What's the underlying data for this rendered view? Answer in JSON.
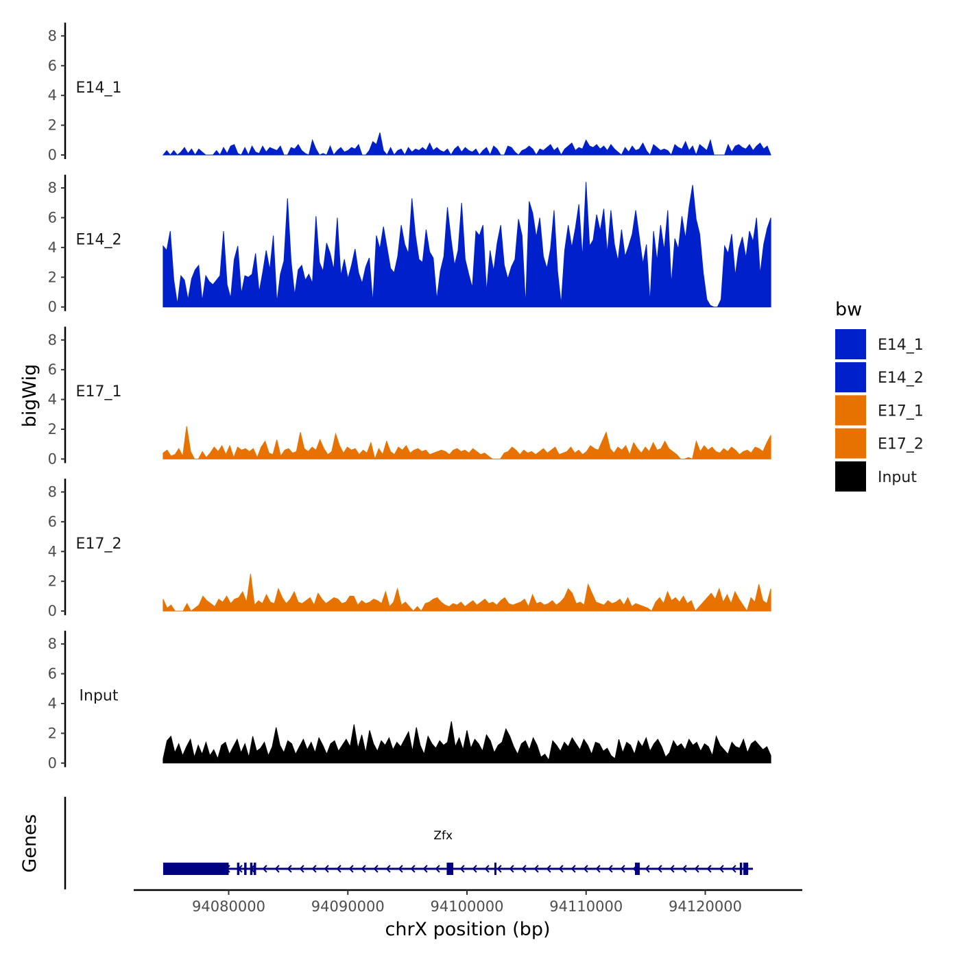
{
  "chart_data": {
    "type": "area",
    "title": "",
    "xlabel": "chrX position (bp)",
    "ylabel": "bigWig",
    "genes_label": "Genes",
    "xlim": [
      94072000,
      94128000
    ],
    "ylim": [
      0,
      8.8
    ],
    "x_ticks": [
      94080000,
      94090000,
      94100000,
      94110000,
      94120000
    ],
    "x_tick_labels": [
      "94080000",
      "94090000",
      "94100000",
      "94110000",
      "94120000"
    ],
    "y_ticks": [
      0,
      2,
      4,
      6,
      8
    ],
    "y_tick_labels": [
      "0",
      "2",
      "4",
      "6",
      "8"
    ],
    "region_start": 94074500,
    "region_end": 94125500,
    "legend": {
      "title": "bw",
      "position": "right",
      "items": [
        {
          "label": "E14_1",
          "color": "#0020CC"
        },
        {
          "label": "E14_2",
          "color": "#0020CC"
        },
        {
          "label": "E17_1",
          "color": "#E87200"
        },
        {
          "label": "E17_2",
          "color": "#E87200"
        },
        {
          "label": "Input",
          "color": "#000000"
        }
      ]
    },
    "series": [
      {
        "name": "E14_1",
        "color": "#0020CC",
        "values": [
          0,
          0.3,
          0,
          0.3,
          0,
          0.2,
          0.5,
          0.1,
          0.4,
          0,
          0.4,
          0.2,
          0,
          0,
          0,
          0.3,
          0,
          0.5,
          0.1,
          0.6,
          0.7,
          0.1,
          0,
          0.5,
          0,
          0.6,
          0.2,
          0.1,
          0.6,
          0.2,
          0.5,
          0.4,
          0.3,
          0.6,
          0,
          0,
          0.5,
          0.4,
          0.7,
          0.3,
          0.1,
          0,
          1,
          0.4,
          0,
          0.1,
          0,
          0.6,
          0,
          0.3,
          0.5,
          0.2,
          0.3,
          0.5,
          0.4,
          0.7,
          0,
          0,
          0.3,
          0.9,
          0.7,
          1.5,
          0.3,
          0,
          0.5,
          0,
          0.3,
          0.4,
          0,
          0.5,
          0.2,
          0.4,
          0.3,
          0.5,
          0.3,
          0.8,
          0.3,
          0.5,
          0.3,
          0.2,
          0.4,
          0,
          0.4,
          0.6,
          0.2,
          0.5,
          0.3,
          0.2,
          0.4,
          0,
          0.3,
          0.5,
          0,
          0.6,
          0.4,
          0,
          0,
          0.6,
          0.5,
          0.2,
          0,
          0.3,
          0.4,
          0.6,
          0.4,
          0,
          0.4,
          0.3,
          0.5,
          0.7,
          0.3,
          0.5,
          0,
          0.4,
          0.6,
          0.8,
          0.3,
          0.5,
          0.4,
          1,
          0.6,
          0.5,
          0.7,
          0.4,
          0.6,
          0.3,
          0.7,
          0.4,
          0.2,
          0,
          0.5,
          0.2,
          0.6,
          0.3,
          0.4,
          0.8,
          0.3,
          0,
          0.7,
          0.5,
          0.3,
          0.4,
          0.3,
          0,
          0.7,
          0.5,
          0.4,
          0.9,
          0.3,
          0.6,
          0,
          0.7,
          0.5,
          0.3,
          1,
          0,
          0,
          0,
          0,
          0.7,
          0.2,
          0.6,
          0.7,
          0.5,
          0.4,
          0.7,
          0.3,
          0.6,
          0.8,
          0.4,
          0.6,
          0
        ]
      },
      {
        "name": "E14_2",
        "color": "#0020CC",
        "values": [
          4.1,
          3.8,
          5.1,
          1.8,
          0.2,
          2.1,
          1.8,
          0.5,
          1.9,
          2.5,
          2.8,
          0.4,
          2.1,
          1.7,
          1.5,
          1.8,
          2.1,
          5.1,
          1.5,
          0.6,
          3.2,
          4.1,
          0.9,
          2.1,
          2,
          2.2,
          3.6,
          1,
          2.3,
          3.8,
          2.5,
          4.8,
          0.3,
          2.2,
          3.1,
          7.3,
          3.1,
          0.8,
          2.5,
          2.8,
          1.8,
          2.2,
          1.6,
          6.1,
          3,
          2.4,
          4.3,
          3.6,
          2.5,
          6,
          2.1,
          3.2,
          1.9,
          2.8,
          3.9,
          2.3,
          1.6,
          2.7,
          3.3,
          0.3,
          4.8,
          3.9,
          5.4,
          4,
          2.6,
          2.3,
          3.4,
          5.5,
          4.2,
          3.6,
          7.3,
          4.8,
          3.2,
          3,
          5.2,
          3.7,
          3.3,
          0.5,
          2.4,
          3.4,
          6.7,
          4.6,
          2.8,
          3.8,
          7,
          3.2,
          2.2,
          1.3,
          5.1,
          4.8,
          5.5,
          1,
          3.8,
          2.4,
          4.3,
          5.5,
          2.8,
          1.9,
          2.7,
          3.2,
          5.9,
          4.8,
          0.1,
          7.1,
          6.3,
          4.7,
          6,
          3.4,
          2.6,
          3.9,
          6.5,
          2.4,
          0.2,
          3.8,
          5.5,
          4,
          5.3,
          6.9,
          3.3,
          8.4,
          4.1,
          4.5,
          6.2,
          5.1,
          6.6,
          3.6,
          6.5,
          4.2,
          3.1,
          5.2,
          3.4,
          4.1,
          4.9,
          6.5,
          4.7,
          2.9,
          4.2,
          0.3,
          5.1,
          3.1,
          5.5,
          3.8,
          6.5,
          1.5,
          4.6,
          3.9,
          6.1,
          4.6,
          6.7,
          8.2,
          5.9,
          4.9,
          2.3,
          0.5,
          0.1,
          0,
          0,
          0.5,
          4.1,
          3.6,
          4.9,
          2.1,
          3.9,
          4.7,
          3.3,
          5.1,
          4.4,
          6,
          2.2,
          4.2,
          5.3,
          6
        ]
      },
      {
        "name": "E17_1",
        "color": "#E87200",
        "values": [
          0.4,
          0.6,
          0.2,
          0.3,
          0.7,
          0.2,
          2.2,
          0.5,
          0,
          0,
          0.5,
          0.1,
          0.4,
          0.8,
          0.5,
          0.9,
          0.3,
          0.9,
          0.1,
          0.8,
          0.6,
          0.7,
          0.5,
          0.7,
          0.1,
          0.8,
          1.2,
          0.4,
          0.3,
          1.3,
          0.2,
          0.6,
          0.7,
          0.4,
          0.5,
          1.8,
          0.7,
          0.5,
          0.8,
          0.6,
          1.3,
          0.7,
          0.3,
          0.5,
          1.7,
          0.9,
          0.4,
          0.8,
          0.6,
          0.7,
          0.3,
          0.6,
          0.4,
          1.1,
          0,
          0.7,
          0.3,
          1.2,
          0.5,
          0.3,
          0.8,
          0.6,
          0.9,
          0.4,
          0.6,
          0.7,
          0.5,
          0.6,
          0.3,
          0.4,
          0.5,
          0.6,
          0.5,
          0.3,
          0.6,
          0.7,
          0.5,
          0.6,
          0.4,
          0.7,
          0.5,
          0.3,
          0.4,
          0.2,
          0,
          0,
          0,
          0.4,
          0.5,
          0.8,
          0.6,
          0.3,
          0.6,
          0.4,
          0.5,
          0.3,
          0.5,
          0.7,
          0.4,
          0.6,
          0.8,
          0.3,
          0.4,
          0.5,
          0.8,
          0.4,
          0.6,
          0.3,
          0.5,
          0.9,
          0.7,
          0.6,
          1.2,
          1.8,
          0.7,
          0.4,
          0.8,
          0.6,
          0.9,
          0.3,
          1.1,
          0.7,
          0.4,
          0.8,
          0.5,
          1.1,
          0.6,
          0.7,
          1.2,
          0.7,
          0.5,
          0.3,
          0,
          0,
          0.1,
          0,
          1.2,
          0.5,
          0.9,
          0.6,
          0.8,
          0.5,
          0.4,
          0.7,
          0.5,
          0.8,
          0.6,
          0.3,
          0.5,
          0.6,
          0.4,
          0.8,
          0.7,
          0.5,
          1.1,
          1.6
        ]
      },
      {
        "name": "E17_2",
        "color": "#E87200",
        "values": [
          0.8,
          0.2,
          0.4,
          0,
          0,
          0,
          0.5,
          0,
          0.2,
          0.4,
          1,
          0.7,
          0.5,
          0.3,
          0.8,
          0.6,
          1,
          0.5,
          0.8,
          0.9,
          1.3,
          0.6,
          2.5,
          0.4,
          0.7,
          0.5,
          1.1,
          0.6,
          0.5,
          1.5,
          0.9,
          0.5,
          0.8,
          1.3,
          0.6,
          0.5,
          0.7,
          0.9,
          0.4,
          1.2,
          0.8,
          0.5,
          0.7,
          0.9,
          0.8,
          0.5,
          0.6,
          1,
          1,
          0.4,
          0.7,
          0.5,
          0.6,
          0.8,
          0.7,
          0.5,
          1.3,
          0.3,
          0.6,
          1.5,
          0.4,
          0.6,
          0.3,
          0,
          0.3,
          0,
          0.5,
          0.6,
          0.8,
          0.9,
          0.6,
          0.4,
          0.3,
          0.5,
          0.4,
          0.6,
          0.3,
          0.5,
          0.7,
          0.4,
          0.6,
          0.8,
          0.5,
          0.6,
          0.4,
          0.7,
          0.9,
          0.5,
          0.4,
          0.5,
          0.6,
          0.8,
          0.3,
          1.1,
          0.5,
          0.6,
          0.4,
          0.5,
          0.7,
          0.4,
          0.6,
          0.9,
          1.5,
          1.2,
          0.5,
          0.6,
          0.4,
          1.8,
          1.2,
          0.6,
          0.5,
          0.4,
          0.7,
          0.5,
          0.6,
          0.8,
          0.4,
          0.9,
          0.3,
          0.5,
          0.4,
          0.3,
          0.2,
          0,
          0.6,
          0.9,
          0.5,
          1.3,
          0.7,
          0.9,
          0.6,
          1,
          0.5,
          0.7,
          0,
          0.3,
          0.6,
          0.9,
          1.2,
          0.8,
          1.5,
          0.6,
          1.1,
          0.5,
          1.3,
          0.8,
          0.4,
          0,
          0.9,
          0.6,
          1.8,
          0.7,
          0.5,
          1.5
        ]
      },
      {
        "name": "Input",
        "color": "#000000",
        "values": [
          0.3,
          1.5,
          1.8,
          0.7,
          1.3,
          0.5,
          1.1,
          1.6,
          0.4,
          1.2,
          0.6,
          1.4,
          0.5,
          0.9,
          0.3,
          1.2,
          1.4,
          0.6,
          1.1,
          1.6,
          0.7,
          1.3,
          0.4,
          1.8,
          0.8,
          1,
          1.4,
          0.5,
          1.1,
          2.4,
          1.2,
          0.7,
          1.5,
          1.3,
          0.6,
          1.1,
          1.6,
          0.9,
          1.4,
          0.7,
          1.7,
          1.2,
          0.6,
          1.3,
          1.5,
          0.8,
          1.2,
          1.6,
          1.1,
          2.6,
          1,
          1.9,
          0.7,
          2.2,
          1.3,
          0.8,
          1.5,
          1.2,
          1.7,
          0.9,
          1.4,
          1.1,
          1.6,
          2.1,
          0.8,
          2.4,
          1.2,
          0.6,
          1.8,
          1.3,
          1,
          1.5,
          1.2,
          1.4,
          2.8,
          1.1,
          1.7,
          0.9,
          2.2,
          1,
          1.6,
          1.3,
          0.8,
          1.9,
          1.5,
          0.7,
          1.2,
          1.4,
          2.3,
          1.8,
          1.1,
          0.6,
          1.3,
          1.5,
          0.9,
          1.7,
          1.2,
          0.4,
          0.6,
          0.2,
          1.5,
          1.2,
          0.8,
          1.4,
          1.1,
          1.7,
          1.3,
          0.9,
          1.6,
          1.2,
          0.6,
          1.4,
          1.3,
          0.8,
          1,
          0.5,
          0.3,
          1.6,
          0.7,
          1.4,
          1.2,
          0.6,
          1.5,
          1.1,
          1.7,
          0.8,
          1.3,
          1.6,
          1.1,
          0.4,
          0.7,
          1.5,
          1.1,
          1.3,
          0.9,
          1.6,
          1.2,
          1.4,
          0.8,
          1.3,
          1.1,
          0.5,
          1.8,
          1.2,
          0.9,
          0.6,
          1.4,
          1.1,
          1,
          1.6,
          0.7,
          1.3,
          1.5,
          1.2,
          0.9,
          1.1,
          0.5
        ]
      }
    ],
    "gene": {
      "name": "Zfx",
      "start": 94074500,
      "end": 94124000,
      "strand": "-",
      "color": "#000080",
      "exons": [
        [
          94074500,
          94080000
        ],
        [
          94080700,
          94080900
        ],
        [
          94081300,
          94081500
        ],
        [
          94081800,
          94082000
        ],
        [
          94082100,
          94082300
        ],
        [
          94098300,
          94098850
        ],
        [
          94102300,
          94102450
        ],
        [
          94114100,
          94114500
        ],
        [
          94122900,
          94123100
        ],
        [
          94123200,
          94123600
        ]
      ]
    }
  }
}
